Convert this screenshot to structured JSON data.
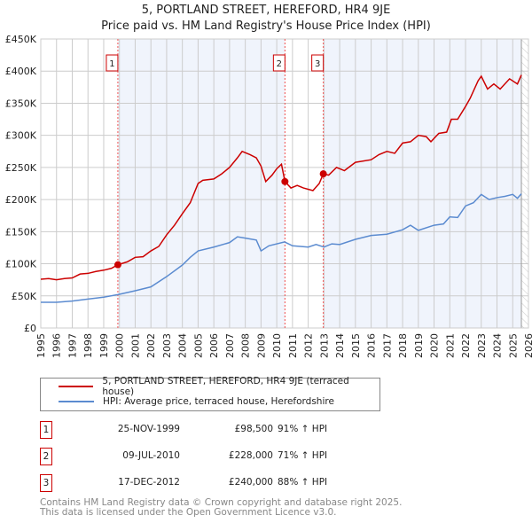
{
  "title": "5, PORTLAND STREET, HEREFORD, HR4 9JE",
  "subtitle": "Price paid vs. HM Land Registry's House Price Index (HPI)",
  "chart_data": {
    "type": "line",
    "xlim": [
      1995,
      2026
    ],
    "ylim": [
      0,
      450000
    ],
    "x_ticks": [
      "1995",
      "1996",
      "1997",
      "1998",
      "1999",
      "2000",
      "2001",
      "2002",
      "2003",
      "2004",
      "2005",
      "2006",
      "2007",
      "2008",
      "2009",
      "2010",
      "2011",
      "2012",
      "2013",
      "2014",
      "2015",
      "2016",
      "2017",
      "2018",
      "2019",
      "2020",
      "2021",
      "2022",
      "2023",
      "2024",
      "2025",
      "2026"
    ],
    "y_ticks": [
      {
        "v": 0,
        "l": "£0"
      },
      {
        "v": 50000,
        "l": "£50K"
      },
      {
        "v": 100000,
        "l": "£100K"
      },
      {
        "v": 150000,
        "l": "£150K"
      },
      {
        "v": 200000,
        "l": "£200K"
      },
      {
        "v": 250000,
        "l": "£250K"
      },
      {
        "v": 300000,
        "l": "£300K"
      },
      {
        "v": 350000,
        "l": "£350K"
      },
      {
        "v": 400000,
        "l": "£400K"
      },
      {
        "v": 450000,
        "l": "£450K"
      }
    ],
    "grid": true,
    "shaded_ranges": [
      [
        1999.9,
        2010.52
      ],
      [
        2012.96,
        2025.55
      ]
    ],
    "forecast_start": 2025.55,
    "series": [
      {
        "name": "5, PORTLAND STREET, HEREFORD, HR4 9JE (terraced house)",
        "color": "#cc0000",
        "x": [
          1995,
          1995.5,
          1996,
          1996.5,
          1997,
          1997.5,
          1998,
          1998.5,
          1999,
          1999.5,
          1999.9,
          2000.5,
          2001,
          2001.5,
          2002,
          2002.5,
          2003,
          2003.5,
          2004,
          2004.5,
          2005,
          2005.3,
          2006,
          2006.5,
          2007,
          2007.5,
          2007.8,
          2008.3,
          2008.7,
          2009,
          2009.3,
          2009.7,
          2010,
          2010.3,
          2010.52,
          2010.9,
          2011.3,
          2011.7,
          2012.3,
          2012.7,
          2012.96,
          2013.3,
          2013.8,
          2014.3,
          2015,
          2016,
          2016.5,
          2017,
          2017.5,
          2018,
          2018.5,
          2019,
          2019.5,
          2019.8,
          2020.3,
          2020.8,
          2021.1,
          2021.5,
          2022,
          2022.3,
          2022.8,
          2023,
          2023.4,
          2023.8,
          2024.2,
          2024.8,
          2025.3,
          2025.55
        ],
        "y": [
          76000,
          77000,
          75000,
          77000,
          78000,
          84000,
          85000,
          88000,
          90000,
          93000,
          98500,
          103000,
          110000,
          111000,
          120000,
          127000,
          145000,
          160000,
          178000,
          195000,
          225000,
          230000,
          232000,
          240000,
          250000,
          265000,
          275000,
          270000,
          265000,
          252000,
          228000,
          238000,
          248000,
          255000,
          228000,
          218000,
          222000,
          218000,
          214000,
          225000,
          240000,
          238000,
          250000,
          245000,
          258000,
          262000,
          270000,
          275000,
          272000,
          288000,
          290000,
          300000,
          298000,
          290000,
          303000,
          305000,
          325000,
          325000,
          345000,
          358000,
          385000,
          392000,
          372000,
          380000,
          372000,
          388000,
          380000,
          394000
        ]
      },
      {
        "name": "HPI: Average price, terraced house, Herefordshire",
        "color": "#5b8bd0",
        "x": [
          1995,
          1996,
          1997,
          1998,
          1999,
          1999.9,
          2001,
          2002,
          2003,
          2004,
          2004.5,
          2005,
          2006,
          2007,
          2007.5,
          2008,
          2008.7,
          2009,
          2009.5,
          2010.5,
          2011,
          2012,
          2012.5,
          2013,
          2013.5,
          2014,
          2015,
          2016,
          2017,
          2018,
          2018.5,
          2019,
          2020,
          2020.6,
          2021,
          2021.5,
          2022,
          2022.5,
          2023,
          2023.5,
          2024,
          2024.5,
          2025,
          2025.3,
          2025.55
        ],
        "y": [
          40000,
          40000,
          42000,
          45000,
          48000,
          52000,
          58000,
          64000,
          80000,
          98000,
          110000,
          120000,
          126000,
          133000,
          142000,
          140000,
          137000,
          120000,
          128000,
          134000,
          128000,
          126000,
          130000,
          126000,
          131000,
          130000,
          138000,
          144000,
          146000,
          153000,
          160000,
          152000,
          160000,
          162000,
          173000,
          172000,
          190000,
          195000,
          208000,
          200000,
          203000,
          205000,
          208000,
          202000,
          209000
        ]
      }
    ],
    "sales": [
      {
        "n": "1",
        "x": 1999.9,
        "y": 98500
      },
      {
        "n": "2",
        "x": 2010.52,
        "y": 228000
      },
      {
        "n": "3",
        "x": 2012.96,
        "y": 240000
      }
    ]
  },
  "legend": {
    "red": "5, PORTLAND STREET, HEREFORD, HR4 9JE (terraced house)",
    "blue": "HPI: Average price, terraced house, Herefordshire"
  },
  "transactions": [
    {
      "n": "1",
      "date": "25-NOV-1999",
      "price": "£98,500",
      "hpi": "91% ↑ HPI"
    },
    {
      "n": "2",
      "date": "09-JUL-2010",
      "price": "£228,000",
      "hpi": "71% ↑ HPI"
    },
    {
      "n": "3",
      "date": "17-DEC-2012",
      "price": "£240,000",
      "hpi": "88% ↑ HPI"
    }
  ],
  "footer": {
    "line1": "Contains HM Land Registry data © Crown copyright and database right 2025.",
    "line2": "This data is licensed under the Open Government Licence v3.0."
  }
}
